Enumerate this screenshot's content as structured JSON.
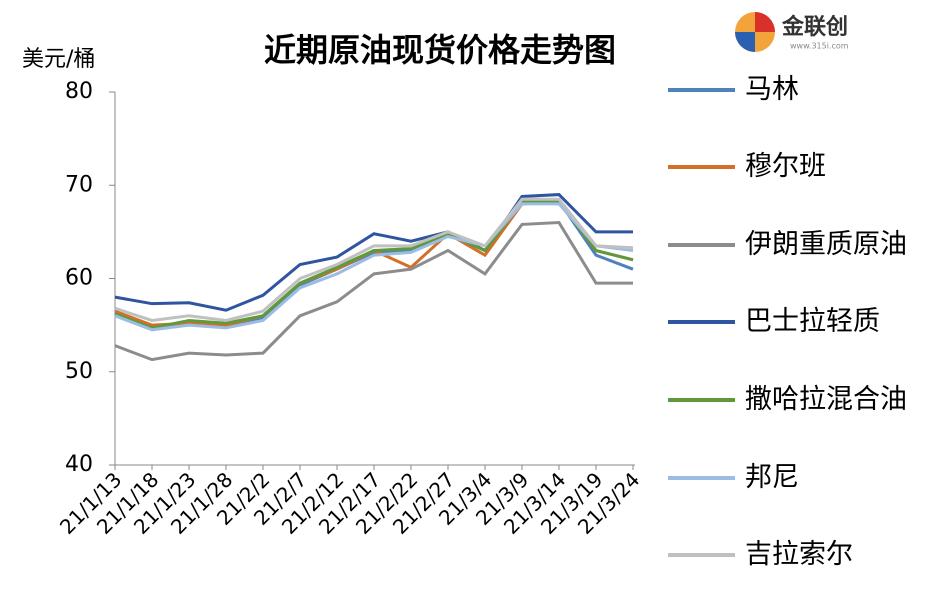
{
  "chart_data": {
    "type": "line",
    "title": "近期原油现货价格走势图",
    "y_label": "美元/桶",
    "logo": "金联创",
    "logo_url": "www.315i.com",
    "categories": [
      "21/1/13",
      "21/1/18",
      "21/1/23",
      "21/1/28",
      "21/2/2",
      "21/2/7",
      "21/2/12",
      "21/2/17",
      "21/2/22",
      "21/2/27",
      "21/3/4",
      "21/3/9",
      "21/3/14",
      "21/3/19",
      "21/3/24"
    ],
    "series": [
      {
        "name": "马林",
        "color": "#4f81bd",
        "values": [
          56.3,
          54.8,
          55.3,
          55,
          55.8,
          59.3,
          61,
          62.8,
          63,
          64.8,
          63,
          68,
          68.3,
          62.5,
          61
        ]
      },
      {
        "name": "穆尔班",
        "color": "#d46f2a",
        "values": [
          56.5,
          55,
          55.2,
          55,
          56,
          59.5,
          61,
          63,
          61.2,
          64.8,
          62.5,
          68,
          68.3,
          63,
          62
        ]
      },
      {
        "name": "伊朗重质原油",
        "color": "#8c8c8c",
        "values": [
          52.8,
          51.3,
          52,
          51.8,
          52,
          56,
          57.5,
          60.5,
          61,
          63,
          60.5,
          65.8,
          66,
          59.5,
          59.5
        ]
      },
      {
        "name": "巴士拉轻质",
        "color": "#2f55a0",
        "values": [
          58,
          57.3,
          57.4,
          56.6,
          58.2,
          61.5,
          62.3,
          64.8,
          64,
          65,
          63,
          68.8,
          69,
          65,
          65
        ]
      },
      {
        "name": "撒哈拉混合油",
        "color": "#5e9a3c",
        "values": [
          56.2,
          54.7,
          55.5,
          55.2,
          56,
          59.5,
          61.2,
          63,
          63.2,
          64.8,
          63,
          68.2,
          68.3,
          63,
          62
        ]
      },
      {
        "name": "邦尼",
        "color": "#9cbde3",
        "values": [
          56,
          54.5,
          55,
          54.7,
          55.5,
          59,
          60.5,
          62.5,
          62.8,
          64.5,
          63.5,
          68,
          68,
          63.5,
          63
        ]
      },
      {
        "name": "吉拉索尔",
        "color": "#c0c0c0",
        "values": [
          56.8,
          55.5,
          56,
          55.5,
          56.5,
          60,
          61.5,
          63.5,
          63.5,
          65,
          63.5,
          68.5,
          68.5,
          63.5,
          63.3
        ]
      }
    ],
    "ylim": [
      40,
      80
    ],
    "yticks": [
      40,
      50,
      60,
      70,
      80
    ],
    "grid": false
  }
}
